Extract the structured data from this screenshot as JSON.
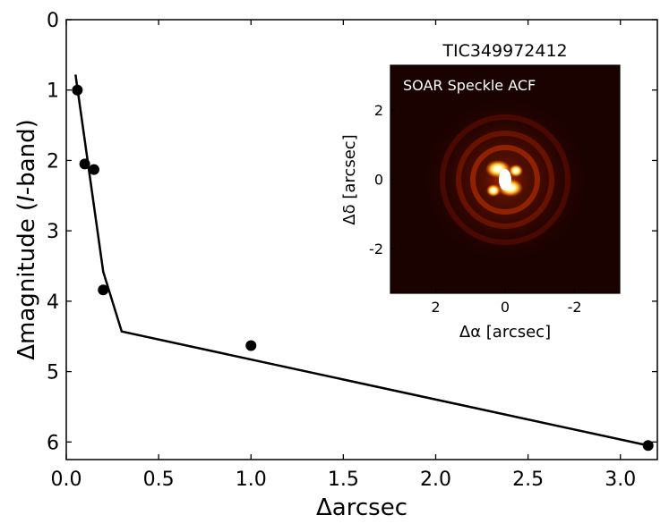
{
  "chart_data": [
    {
      "type": "line",
      "xlabel": "Δarcsec",
      "ylabel": {
        "prefix": "Δmagnitude (",
        "italic": "I",
        "suffix": "-band)"
      },
      "xlim": [
        0,
        3.2
      ],
      "ylim": [
        6.25,
        0
      ],
      "y_inverted": true,
      "xticks": [
        0.0,
        0.5,
        1.0,
        1.5,
        2.0,
        2.5,
        3.0
      ],
      "xtick_labels": [
        "0.0",
        "0.5",
        "1.0",
        "1.5",
        "2.0",
        "2.5",
        "3.0"
      ],
      "yticks": [
        0,
        1,
        2,
        3,
        4,
        5,
        6
      ],
      "ytick_labels": [
        "0",
        "1",
        "2",
        "3",
        "4",
        "5",
        "6"
      ],
      "grid": false,
      "series": [
        {
          "style": "line",
          "color": "#000000",
          "x": [
            0.05,
            0.2,
            0.3,
            3.15
          ],
          "y": [
            0.78,
            3.58,
            4.43,
            6.05
          ]
        },
        {
          "style": "markers",
          "color": "#000000",
          "x": [
            0.06,
            0.1,
            0.15,
            0.2,
            1.0,
            3.15
          ],
          "y": [
            1.0,
            2.05,
            2.13,
            3.84,
            4.63,
            6.05
          ]
        }
      ]
    },
    {
      "type": "heatmap",
      "title": "TIC349972412",
      "label": "SOAR Speckle ACF",
      "xlabel": "Δα [arcsec]",
      "ylabel": "Δδ [arcsec]",
      "xlim": [
        3.3,
        -3.3
      ],
      "ylim": [
        -3.3,
        3.3
      ],
      "xticks": [
        2,
        0,
        -2
      ],
      "xtick_labels": [
        "2",
        "0",
        "-2"
      ],
      "yticks": [
        -2,
        0,
        2
      ],
      "ytick_labels": [
        "-2",
        "0",
        "2"
      ],
      "colormap": "afmhot",
      "colors": {
        "background": "#1a0200",
        "peak": "#ffffff",
        "mid": "#e05a00",
        "low": "#5a0a00"
      }
    }
  ]
}
